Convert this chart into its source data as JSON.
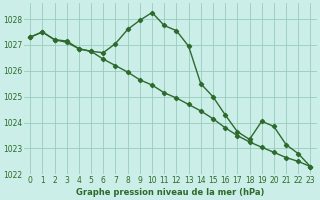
{
  "line1_x": [
    0,
    1,
    2,
    3,
    4,
    5,
    6,
    7,
    8,
    9,
    10,
    11,
    12,
    13,
    14,
    15,
    16,
    17,
    18,
    19,
    20,
    21,
    22,
    23
  ],
  "line1_y": [
    1027.3,
    1027.5,
    1027.2,
    1027.15,
    1026.85,
    1026.75,
    1026.7,
    1027.05,
    1027.6,
    1027.95,
    1028.25,
    1027.75,
    1027.55,
    1026.95,
    1025.5,
    1025.0,
    1024.3,
    1023.65,
    1023.35,
    1024.05,
    1023.85,
    1023.15,
    1022.8,
    1022.3
  ],
  "line2_x": [
    0,
    1,
    2,
    3,
    4,
    5,
    6,
    7,
    8,
    9,
    10,
    11,
    12,
    13,
    14,
    15,
    16,
    17,
    18,
    19,
    20,
    21,
    22,
    23
  ],
  "line2_y": [
    1027.3,
    1027.5,
    1027.2,
    1027.1,
    1026.85,
    1026.75,
    1026.45,
    1026.2,
    1025.95,
    1025.65,
    1025.45,
    1025.15,
    1024.95,
    1024.7,
    1024.45,
    1024.15,
    1023.8,
    1023.5,
    1023.25,
    1023.05,
    1022.85,
    1022.65,
    1022.5,
    1022.3
  ],
  "line_color": "#2d6a2d",
  "bg_color": "#cceee8",
  "grid_color": "#99ccbb",
  "xlabel": "Graphe pression niveau de la mer (hPa)",
  "ylim": [
    1022.0,
    1028.6
  ],
  "yticks": [
    1022,
    1023,
    1024,
    1025,
    1026,
    1027,
    1028
  ],
  "xticks": [
    0,
    1,
    2,
    3,
    4,
    5,
    6,
    7,
    8,
    9,
    10,
    11,
    12,
    13,
    14,
    15,
    16,
    17,
    18,
    19,
    20,
    21,
    22,
    23
  ],
  "marker": "D",
  "markersize": 2.2,
  "linewidth": 1.0,
  "tick_fontsize": 5.5,
  "xlabel_fontsize": 6.0
}
